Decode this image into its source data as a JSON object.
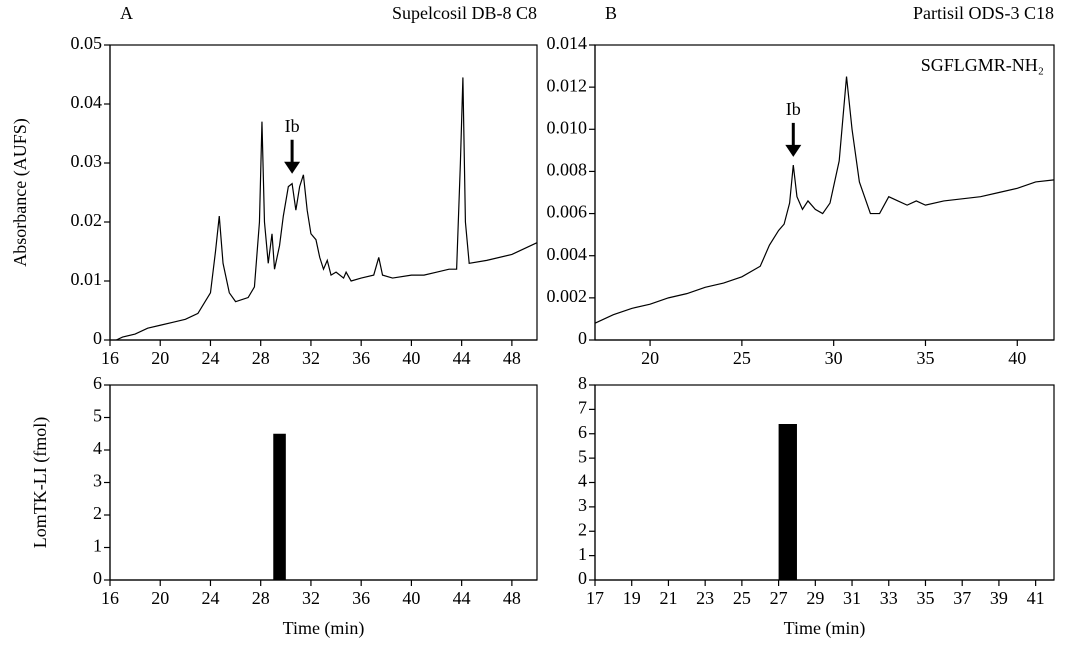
{
  "chart_data": [
    {
      "type": "line",
      "label": "A",
      "title": "Supelcosil DB-8 C8",
      "ylabel": "Absorbance  (AUFS)",
      "color": "#000000",
      "x": [
        16.5,
        17,
        18,
        19,
        20,
        21,
        22,
        23,
        24,
        24.4,
        24.7,
        25,
        25.5,
        26,
        27,
        27.5,
        27.9,
        28.1,
        28.3,
        28.6,
        28.9,
        29.1,
        29.5,
        29.8,
        30.2,
        30.5,
        30.8,
        31.1,
        31.4,
        31.7,
        32,
        32.4,
        32.7,
        33,
        33.3,
        33.6,
        34,
        34.6,
        34.8,
        35.2,
        36,
        37,
        37.4,
        37.7,
        38.5,
        40,
        41,
        42,
        43,
        43.6,
        43.9,
        44.1,
        44.3,
        44.6,
        46,
        48,
        49,
        50
      ],
      "values": [
        0,
        0.0005,
        0.001,
        0.002,
        0.0025,
        0.003,
        0.0035,
        0.0045,
        0.008,
        0.015,
        0.021,
        0.013,
        0.008,
        0.0065,
        0.0072,
        0.009,
        0.02,
        0.037,
        0.02,
        0.013,
        0.018,
        0.012,
        0.016,
        0.021,
        0.026,
        0.0265,
        0.022,
        0.026,
        0.028,
        0.022,
        0.018,
        0.017,
        0.014,
        0.012,
        0.0135,
        0.011,
        0.0115,
        0.0105,
        0.0115,
        0.01,
        0.0105,
        0.011,
        0.014,
        0.011,
        0.0105,
        0.011,
        0.011,
        0.0115,
        0.012,
        0.012,
        0.03,
        0.0445,
        0.02,
        0.013,
        0.0135,
        0.0145,
        0.0155,
        0.0165
      ],
      "xlim": [
        16,
        50
      ],
      "xticks": [
        16,
        20,
        24,
        28,
        32,
        36,
        40,
        44,
        48
      ],
      "ylim": [
        0,
        0.05
      ],
      "yticks": [
        0,
        0.01,
        0.02,
        0.03,
        0.04,
        0.05
      ],
      "annotations": [
        {
          "text": "Ib",
          "x": 30.5,
          "y": 0.0275
        }
      ]
    },
    {
      "type": "line",
      "label": "B",
      "title": "Partisil ODS-3 C18",
      "inset_label": "SGFLGMR-NH₂",
      "color": "#000000",
      "x": [
        17,
        18,
        19,
        20,
        21,
        22,
        23,
        24,
        25,
        26,
        26.5,
        27,
        27.3,
        27.6,
        27.8,
        28,
        28.3,
        28.6,
        29,
        29.4,
        29.8,
        30.3,
        30.7,
        31,
        31.4,
        32,
        32.5,
        33,
        33.5,
        34,
        34.5,
        35,
        36,
        37,
        38,
        39,
        40,
        41,
        42
      ],
      "values": [
        0.0008,
        0.0012,
        0.0015,
        0.0017,
        0.002,
        0.0022,
        0.0025,
        0.0027,
        0.003,
        0.0035,
        0.0045,
        0.0052,
        0.0055,
        0.0065,
        0.0083,
        0.0068,
        0.0062,
        0.0066,
        0.0062,
        0.006,
        0.0065,
        0.0085,
        0.0125,
        0.01,
        0.0075,
        0.006,
        0.006,
        0.0068,
        0.0066,
        0.0064,
        0.0066,
        0.0064,
        0.0066,
        0.0067,
        0.0068,
        0.007,
        0.0072,
        0.0075,
        0.0076
      ],
      "xlim": [
        17,
        42
      ],
      "xticks": [
        20,
        25,
        30,
        35,
        40
      ],
      "ylim": [
        0,
        0.014
      ],
      "yticks": [
        0,
        0.002,
        0.004,
        0.006,
        0.008,
        {
          "value": 0.01,
          "label": "0.010"
        },
        0.012,
        0.014
      ],
      "annotations": [
        {
          "text": "Ib",
          "x": 27.8,
          "y": 0.0085
        }
      ]
    },
    {
      "type": "histogram",
      "ylabel": "LomTK-LI (fmol)",
      "xlabel": "Time (min)",
      "color": "#000000",
      "bins": [
        29,
        30
      ],
      "values": [
        4.5
      ],
      "xlim": [
        16,
        50
      ],
      "xticks": [
        16,
        20,
        24,
        28,
        32,
        36,
        40,
        44,
        48
      ],
      "ylim": [
        0,
        6
      ],
      "yticks": [
        0,
        1,
        2,
        3,
        4,
        5,
        6
      ]
    },
    {
      "type": "histogram",
      "xlabel": "Time (min)",
      "color": "#000000",
      "bins": [
        27,
        28
      ],
      "values": [
        6.4
      ],
      "xlim": [
        17,
        42
      ],
      "xticks": [
        17,
        19,
        21,
        23,
        25,
        27,
        29,
        31,
        33,
        35,
        37,
        39,
        41
      ],
      "ylim": [
        0,
        8
      ],
      "yticks": [
        0,
        1,
        2,
        3,
        4,
        5,
        6,
        7,
        8
      ]
    }
  ]
}
